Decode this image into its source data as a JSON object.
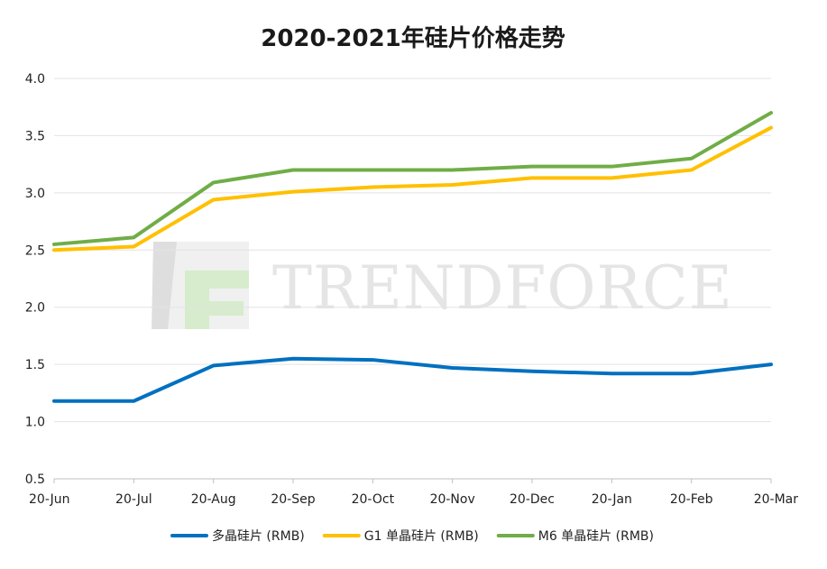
{
  "chart_data": {
    "type": "line",
    "title": "2020-2021年硅片价格走势",
    "xlabel": "",
    "ylabel": "",
    "categories": [
      "20-Jun",
      "20-Jul",
      "20-Aug",
      "20-Sep",
      "20-Oct",
      "20-Nov",
      "20-Dec",
      "20-Jan",
      "20-Feb",
      "20-Mar"
    ],
    "ylim": [
      0.5,
      4.0
    ],
    "yticks": [
      "0.5",
      "1.0",
      "1.5",
      "2.0",
      "2.5",
      "3.0",
      "3.5",
      "4.0"
    ],
    "grid": true,
    "legend_position": "bottom",
    "series": [
      {
        "name": "多晶硅片 (RMB)",
        "color": "#0070c0",
        "values": [
          1.18,
          1.18,
          1.49,
          1.55,
          1.54,
          1.47,
          1.44,
          1.42,
          1.42,
          1.5
        ]
      },
      {
        "name": "G1 单晶硅片 (RMB)",
        "color": "#ffc000",
        "values": [
          2.5,
          2.53,
          2.94,
          3.01,
          3.05,
          3.07,
          3.13,
          3.13,
          3.2,
          3.57
        ]
      },
      {
        "name": "M6 单晶硅片 (RMB)",
        "color": "#70ad47",
        "values": [
          2.55,
          2.61,
          3.09,
          3.2,
          3.2,
          3.2,
          3.23,
          3.23,
          3.3,
          3.7
        ]
      }
    ]
  },
  "watermark": {
    "text": "TRENDFORCE",
    "logo_color": "#d9d9d9",
    "logo_accent": "#b3d9a6"
  }
}
